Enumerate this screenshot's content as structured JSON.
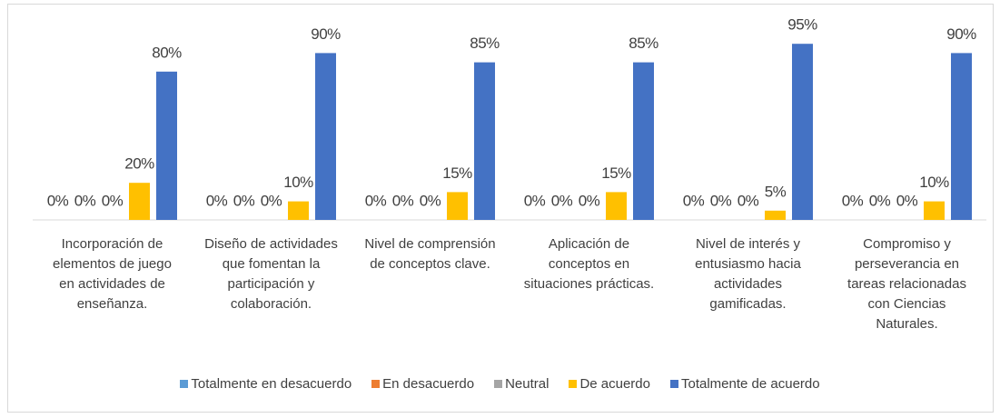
{
  "chart_data": {
    "type": "bar",
    "categories": [
      "Incorporación de elementos de juego en actividades de enseñanza.",
      "Diseño de actividades que fomentan la participación y colaboración.",
      "Nivel de comprensión de conceptos clave.",
      "Aplicación de conceptos en situaciones prácticas.",
      "Nivel de interés y entusiasmo hacia actividades gamificadas.",
      "Compromiso y perseverancia en tareas relacionadas con Ciencias Naturales."
    ],
    "series": [
      {
        "name": "Totalmente en desacuerdo",
        "color": "#5b9bd5",
        "values": [
          0,
          0,
          0,
          0,
          0,
          0
        ],
        "value_labels": [
          "0%",
          "0%",
          "0%",
          "0%",
          "0%",
          "0%"
        ]
      },
      {
        "name": "En desacuerdo",
        "color": "#ed7d31",
        "values": [
          0,
          0,
          0,
          0,
          0,
          0
        ],
        "value_labels": [
          "0%",
          "0%",
          "0%",
          "0%",
          "0%",
          "0%"
        ]
      },
      {
        "name": "Neutral",
        "color": "#a5a5a5",
        "values": [
          0,
          0,
          0,
          0,
          0,
          0
        ],
        "value_labels": [
          "0%",
          "0%",
          "0%",
          "0%",
          "0%",
          "0%"
        ]
      },
      {
        "name": "De acuerdo",
        "color": "#ffc000",
        "values": [
          20,
          10,
          15,
          15,
          5,
          10
        ],
        "value_labels": [
          "20%",
          "10%",
          "15%",
          "15%",
          "5%",
          "10%"
        ]
      },
      {
        "name": "Totalmente de acuerdo",
        "color": "#4472c4",
        "values": [
          80,
          90,
          85,
          85,
          95,
          90
        ],
        "value_labels": [
          "80%",
          "90%",
          "85%",
          "85%",
          "95%",
          "90%"
        ]
      }
    ],
    "legend": "bottom"
  }
}
